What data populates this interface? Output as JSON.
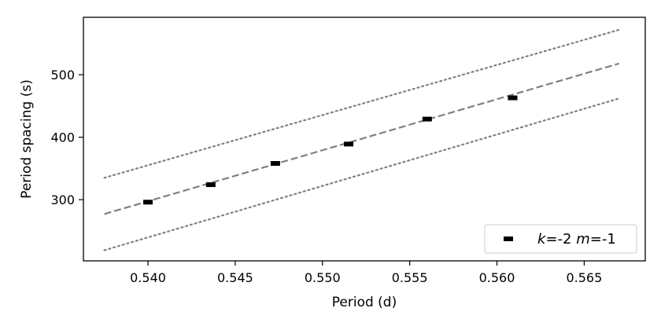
{
  "chart_data": {
    "type": "scatter",
    "xlabel": "Period (d)",
    "ylabel": "Period spacing (s)",
    "xlim": [
      0.5363,
      0.5685
    ],
    "ylim": [
      202,
      592
    ],
    "x_ticks": [
      0.54,
      0.545,
      0.55,
      0.555,
      0.56,
      0.565
    ],
    "x_tick_labels": [
      "0.540",
      "0.545",
      "0.550",
      "0.555",
      "0.560",
      "0.565"
    ],
    "y_ticks": [
      300,
      400,
      500
    ],
    "y_tick_labels": [
      "300",
      "400",
      "500"
    ],
    "grid": false,
    "legend_position": "lower-right",
    "legend_label_parts": [
      {
        "text": "k",
        "italic": true
      },
      {
        "text": "=-2 ",
        "italic": false
      },
      {
        "text": "m",
        "italic": true
      },
      {
        "text": "=-1",
        "italic": false
      }
    ],
    "series": [
      {
        "name": "k=-2 m=-1",
        "marker": "dash",
        "color": "#000000",
        "points": [
          {
            "x": 0.54,
            "y": 296
          },
          {
            "x": 0.5436,
            "y": 324
          },
          {
            "x": 0.5473,
            "y": 358
          },
          {
            "x": 0.5515,
            "y": 389
          },
          {
            "x": 0.556,
            "y": 429
          },
          {
            "x": 0.5609,
            "y": 463
          }
        ]
      }
    ],
    "fit_lines": [
      {
        "role": "fit",
        "style": "dashed",
        "color": "#808080",
        "x": [
          0.5375,
          0.567
        ],
        "y": [
          277,
          518
        ]
      },
      {
        "role": "upper-bound",
        "style": "dotted",
        "color": "#808080",
        "x": [
          0.5375,
          0.567
        ],
        "y": [
          335,
          572
        ]
      },
      {
        "role": "lower-bound",
        "style": "dotted",
        "color": "#808080",
        "x": [
          0.5375,
          0.567
        ],
        "y": [
          219,
          462
        ]
      }
    ]
  }
}
